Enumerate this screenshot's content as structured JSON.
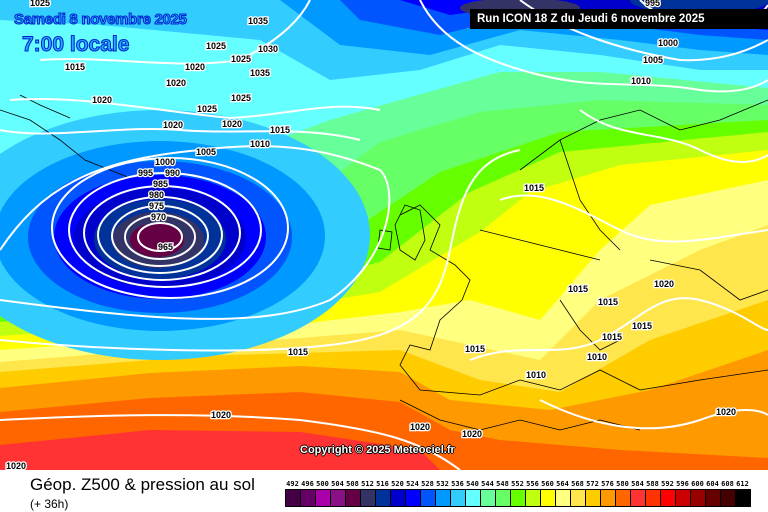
{
  "header": {
    "date": "Samedi 8 novembre 2025",
    "time": "7:00 locale",
    "run": "Run ICON 18 Z du Jeudi 6 novembre 2025"
  },
  "map": {
    "copyright": "Copyright © 2025 Meteociel.fr",
    "isobar_labels": [
      "1025",
      "1035",
      "1015",
      "1025",
      "1030",
      "1020",
      "1025",
      "1035",
      "1020",
      "1020",
      "1025",
      "1025",
      "1020",
      "1020",
      "1015",
      "1010",
      "1005",
      "1000",
      "995",
      "990",
      "985",
      "980",
      "975",
      "970",
      "965",
      "1015",
      "1015",
      "1015",
      "1020",
      "1015",
      "1015",
      "1015",
      "1010",
      "1010",
      "1015",
      "1020",
      "1020",
      "1020",
      "1020",
      "1020",
      "995",
      "1000",
      "1005",
      "1010"
    ],
    "low_center_label": "965"
  },
  "footer": {
    "title": "Géop. Z500 & pression au sol",
    "subtitle": "(+ 36h)"
  },
  "legend": {
    "labels": [
      "492",
      "496",
      "500",
      "504",
      "508",
      "512",
      "516",
      "520",
      "524",
      "528",
      "532",
      "536",
      "540",
      "544",
      "548",
      "552",
      "556",
      "560",
      "564",
      "568",
      "572",
      "576",
      "580",
      "584",
      "588",
      "592",
      "596",
      "600",
      "604",
      "608",
      "612"
    ],
    "colors": [
      "#440044",
      "#660066",
      "#aa00aa",
      "#881188",
      "#660044",
      "#333366",
      "#003399",
      "#0000cc",
      "#0000ff",
      "#0055ff",
      "#0099ff",
      "#33ccff",
      "#66ffff",
      "#66ff99",
      "#66ff66",
      "#66ff00",
      "#c0ff10",
      "#ffff00",
      "#ffff80",
      "#ffe64d",
      "#ffcc00",
      "#ff9900",
      "#ff6600",
      "#ff3333",
      "#ff3300",
      "#ff0000",
      "#cc0000",
      "#990000",
      "#660000",
      "#440000",
      "#000000"
    ]
  }
}
